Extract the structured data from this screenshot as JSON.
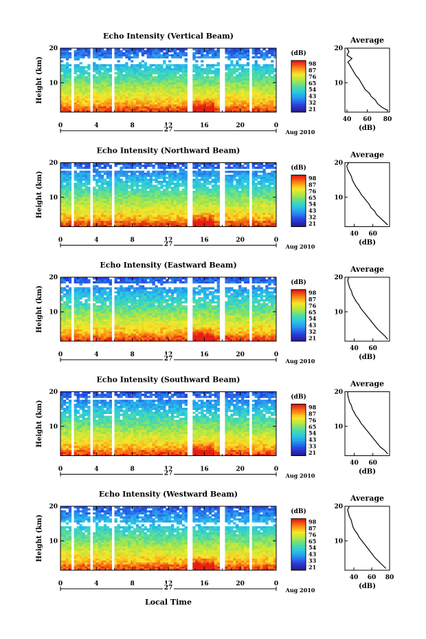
{
  "figure": {
    "xlabel": "Local Time",
    "date_day": "27",
    "date_label": "Aug 2010",
    "colorbar_unit": "(dB)",
    "avg_title": "Average",
    "avg_xlabel": "(dB)"
  },
  "chart_data": [
    {
      "type": "heatmap",
      "title": "Echo Intensity (Vertical Beam)",
      "ylabel": "Height (km)",
      "x_ticks": [
        "0",
        "4",
        "8",
        "12",
        "16",
        "20",
        "0"
      ],
      "xlim": [
        0,
        24
      ],
      "y_ticks": [
        "20",
        "10"
      ],
      "ylim": [
        1.5,
        20
      ],
      "colorbar_ticks": [
        "98",
        "87",
        "76",
        "65",
        "54",
        "43",
        "32",
        "21"
      ],
      "gaps_hours": [
        [
          1.3,
          1.6
        ],
        [
          3.3,
          3.7
        ],
        [
          5.6,
          6.0
        ],
        [
          14.2,
          14.6
        ],
        [
          17.8,
          18.2
        ],
        [
          20.9,
          21.3
        ]
      ],
      "blank_layer_km": [
        15.5,
        17.0
      ],
      "profile": {
        "title": "Average",
        "xlabel": "(dB)",
        "x_ticks": [
          "40",
          "60",
          "80"
        ],
        "xlim": [
          38,
          82
        ],
        "y_ticks": [
          "20",
          "10"
        ],
        "height_km": [
          2,
          3,
          4,
          5,
          6,
          7,
          8,
          9,
          10,
          11,
          12,
          13,
          14,
          15,
          16,
          17,
          18,
          19,
          20
        ],
        "intensity_db": [
          80,
          74,
          70,
          68,
          64,
          62,
          58,
          56,
          54,
          52,
          49,
          47,
          45,
          43,
          41,
          45,
          40,
          42,
          40
        ]
      }
    },
    {
      "type": "heatmap",
      "title": "Echo Intensity (Northward Beam)",
      "ylabel": "Height (km)",
      "x_ticks": [
        "0",
        "4",
        "8",
        "12",
        "16",
        "20",
        "0"
      ],
      "xlim": [
        0,
        24
      ],
      "y_ticks": [
        "20",
        "10"
      ],
      "ylim": [
        1.5,
        20
      ],
      "colorbar_ticks": [
        "98",
        "87",
        "76",
        "65",
        "54",
        "43",
        "32",
        "21"
      ],
      "gaps_hours": [
        [
          1.3,
          1.6
        ],
        [
          3.3,
          3.7
        ],
        [
          5.6,
          6.0
        ],
        [
          14.2,
          14.6
        ],
        [
          17.8,
          18.2
        ],
        [
          20.9,
          21.3
        ]
      ],
      "blank_layer_km": [
        17.5,
        18.2
      ],
      "profile": {
        "title": "Average",
        "xlabel": "(dB)",
        "x_ticks": [
          "40",
          "60"
        ],
        "xlim": [
          30,
          78
        ],
        "y_ticks": [
          "20",
          "10"
        ],
        "height_km": [
          2,
          3,
          4,
          5,
          6,
          7,
          8,
          9,
          10,
          11,
          12,
          13,
          14,
          15,
          16,
          17,
          18,
          19,
          20
        ],
        "intensity_db": [
          76,
          72,
          68,
          64,
          62,
          58,
          56,
          53,
          50,
          47,
          45,
          42,
          40,
          38,
          37,
          35,
          33,
          32,
          34
        ]
      }
    },
    {
      "type": "heatmap",
      "title": "Echo Intensity (Eastward Beam)",
      "ylabel": "Height (km)",
      "x_ticks": [
        "0",
        "4",
        "8",
        "12",
        "16",
        "20",
        "0"
      ],
      "xlim": [
        0,
        24
      ],
      "y_ticks": [
        "20",
        "10"
      ],
      "ylim": [
        1.5,
        20
      ],
      "colorbar_ticks": [
        "98",
        "87",
        "76",
        "65",
        "54",
        "43",
        "32",
        "21"
      ],
      "gaps_hours": [
        [
          1.3,
          1.6
        ],
        [
          3.3,
          3.7
        ],
        [
          5.6,
          6.0
        ],
        [
          14.2,
          14.6
        ],
        [
          17.8,
          18.2
        ],
        [
          20.9,
          21.3
        ]
      ],
      "blank_layer_km": [
        17.0,
        18.2
      ],
      "profile": {
        "title": "Average",
        "xlabel": "(dB)",
        "x_ticks": [
          "40",
          "60"
        ],
        "xlim": [
          30,
          78
        ],
        "y_ticks": [
          "20",
          "10"
        ],
        "height_km": [
          2,
          3,
          4,
          5,
          6,
          7,
          8,
          9,
          10,
          11,
          12,
          13,
          14,
          15,
          16,
          17,
          18,
          19,
          20
        ],
        "intensity_db": [
          76,
          73,
          69,
          65,
          62,
          59,
          56,
          53,
          50,
          47,
          45,
          42,
          40,
          38,
          37,
          35,
          34,
          33,
          34
        ]
      }
    },
    {
      "type": "heatmap",
      "title": "Echo Intensity (Southward Beam)",
      "ylabel": "Height (km)",
      "x_ticks": [
        "0",
        "4",
        "8",
        "12",
        "16",
        "20",
        "0"
      ],
      "xlim": [
        0,
        24
      ],
      "y_ticks": [
        "20",
        "10"
      ],
      "ylim": [
        1.5,
        20
      ],
      "colorbar_ticks": [
        "98",
        "87",
        "76",
        "65",
        "54",
        "43",
        "33",
        "21"
      ],
      "gaps_hours": [
        [
          1.3,
          1.6
        ],
        [
          3.3,
          3.7
        ],
        [
          5.6,
          6.0
        ],
        [
          14.2,
          14.6
        ],
        [
          17.8,
          18.2
        ],
        [
          20.9,
          21.3
        ]
      ],
      "blank_layer_km": [
        17.5,
        18.5
      ],
      "profile": {
        "title": "Average",
        "xlabel": "(dB)",
        "x_ticks": [
          "40",
          "60"
        ],
        "xlim": [
          30,
          78
        ],
        "y_ticks": [
          "20",
          "10"
        ],
        "height_km": [
          2,
          3,
          4,
          5,
          6,
          7,
          8,
          9,
          10,
          11,
          12,
          13,
          14,
          15,
          16,
          17,
          18,
          19,
          20
        ],
        "intensity_db": [
          76,
          73,
          68,
          65,
          62,
          59,
          56,
          53,
          50,
          47,
          45,
          42,
          40,
          38,
          37,
          35,
          34,
          33,
          33
        ]
      }
    },
    {
      "type": "heatmap",
      "title": "Echo Intensity (Westward Beam)",
      "ylabel": "Height (km)",
      "x_ticks": [
        "0",
        "4",
        "8",
        "12",
        "16",
        "20",
        "0"
      ],
      "xlim": [
        0,
        24
      ],
      "y_ticks": [
        "20",
        "10"
      ],
      "ylim": [
        1.5,
        20
      ],
      "colorbar_ticks": [
        "98",
        "87",
        "76",
        "65",
        "54",
        "43",
        "33",
        "21"
      ],
      "gaps_hours": [
        [
          1.3,
          1.6
        ],
        [
          3.3,
          3.7
        ],
        [
          5.6,
          6.0
        ],
        [
          14.2,
          14.6
        ],
        [
          17.8,
          18.2
        ],
        [
          20.9,
          21.3
        ]
      ],
      "blank_layer_km": [
        14.2,
        15.2
      ],
      "profile": {
        "title": "Average",
        "xlabel": "(dB)",
        "x_ticks": [
          "40",
          "60",
          "80"
        ],
        "xlim": [
          30,
          80
        ],
        "y_ticks": [
          "20",
          "10"
        ],
        "height_km": [
          2,
          3,
          4,
          5,
          6,
          7,
          8,
          9,
          10,
          11,
          12,
          13,
          14,
          15,
          16,
          17,
          18,
          19,
          20
        ],
        "intensity_db": [
          76,
          72,
          68,
          64,
          61,
          58,
          55,
          52,
          49,
          46,
          44,
          41,
          39,
          38,
          37,
          35,
          34,
          33,
          35
        ]
      }
    }
  ]
}
